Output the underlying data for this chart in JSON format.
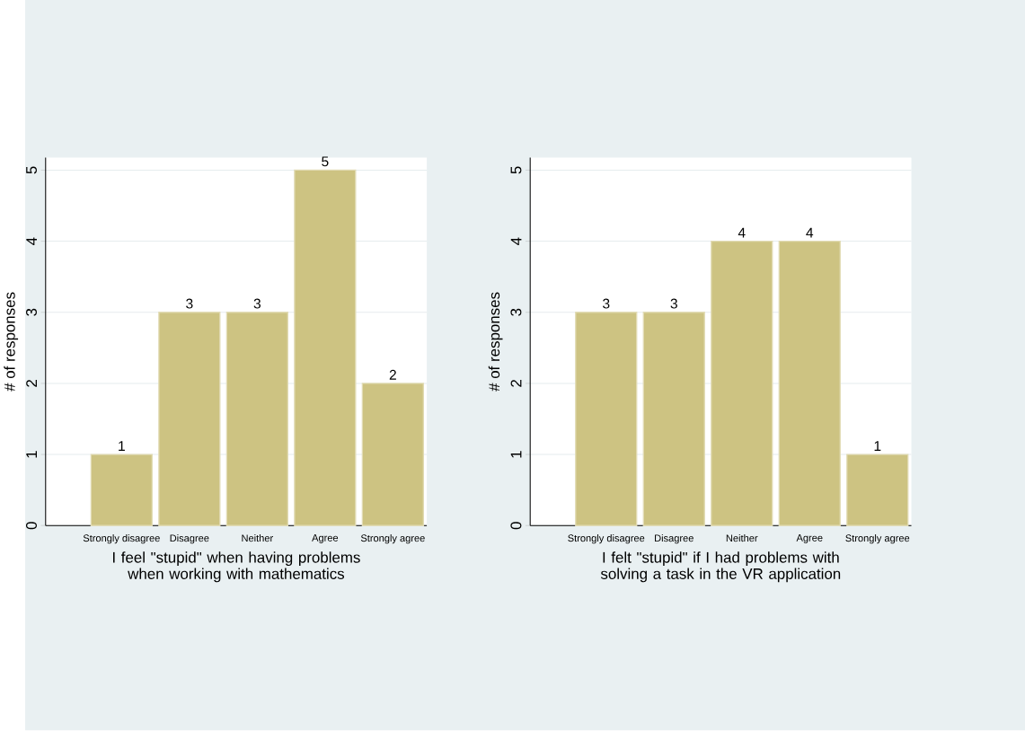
{
  "chart_data": [
    {
      "type": "bar",
      "categories": [
        "Strongly disagree",
        "Disagree",
        "Neither",
        "Agree",
        "Strongly agree"
      ],
      "values": [
        1,
        3,
        3,
        5,
        2
      ],
      "color": "#cdc382",
      "xlabel": "I feel \"stupid\" when having problems when working with mathematics",
      "ylabel": "# of responses",
      "ylim": [
        0,
        5
      ],
      "yticks": [
        0,
        1,
        2,
        3,
        4,
        5
      ],
      "grid": "y",
      "data_labels": true
    },
    {
      "type": "bar",
      "categories": [
        "Strongly disagree",
        "Disagree",
        "Neither",
        "Agree",
        "Strongly agree"
      ],
      "values": [
        3,
        3,
        4,
        4,
        1
      ],
      "color": "#cdc382",
      "xlabel": "I felt \"stupid\" if I had problems with solving a task in the VR application",
      "ylabel": "# of responses",
      "ylim": [
        0,
        5
      ],
      "yticks": [
        0,
        1,
        2,
        3,
        4,
        5
      ],
      "grid": "y",
      "data_labels": true
    }
  ]
}
